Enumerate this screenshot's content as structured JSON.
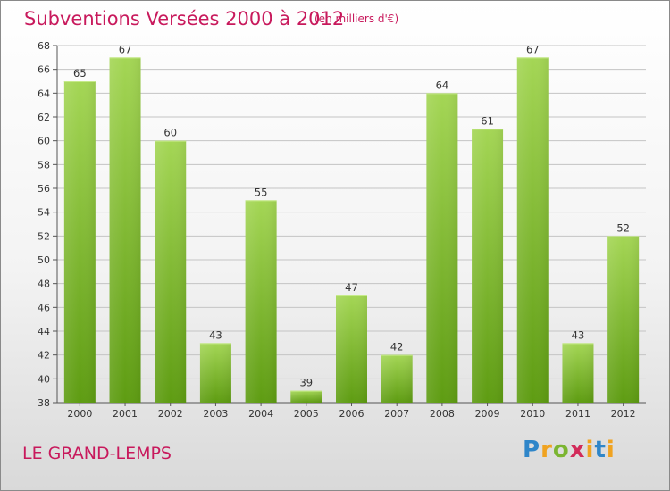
{
  "header": {
    "title": "Subventions Versées 2000 à 2012",
    "subtitle": "(en milliers d'€)"
  },
  "footer": {
    "place": "LE GRAND-LEMPS",
    "logo": "Proxiti"
  },
  "colors": {
    "title": "#c8195c",
    "bar_light": "#9fd14f",
    "bar_dark": "#5f9e10",
    "grid": "#c0c0c0"
  },
  "chart_data": {
    "type": "bar",
    "title": "Subventions Versées 2000 à 2012",
    "subtitle": "(en milliers d'€)",
    "categories": [
      "2000",
      "2001",
      "2002",
      "2003",
      "2004",
      "2005",
      "2006",
      "2007",
      "2008",
      "2009",
      "2010",
      "2011",
      "2012"
    ],
    "values": [
      65,
      67,
      60,
      43,
      55,
      39,
      47,
      42,
      64,
      61,
      67,
      43,
      52
    ],
    "ylim": [
      38,
      68
    ],
    "yticks": [
      38,
      40,
      42,
      44,
      46,
      48,
      50,
      52,
      54,
      56,
      58,
      60,
      62,
      64,
      66,
      68
    ],
    "grid": true,
    "data_labels": true
  }
}
